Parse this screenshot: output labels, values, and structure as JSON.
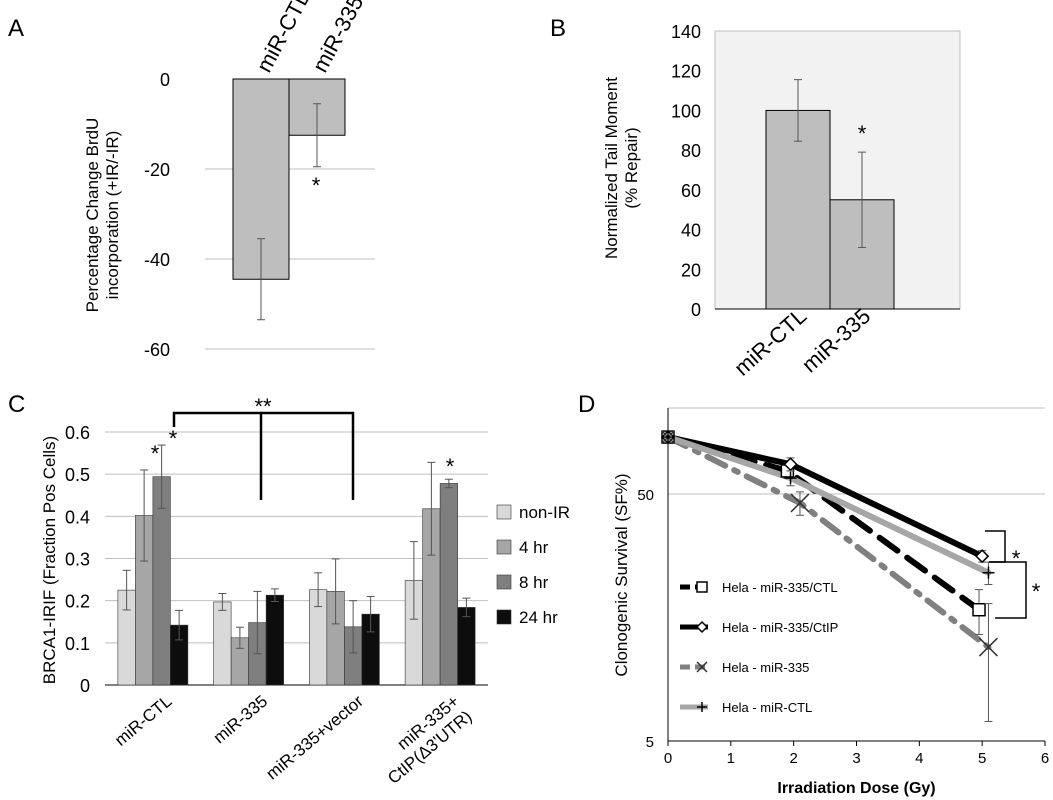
{
  "panels": {
    "A": "A",
    "B": "B",
    "C": "C",
    "D": "D"
  },
  "chart_data": [
    {
      "panel": "A",
      "type": "bar",
      "categories": [
        "miR-CTL",
        "miR-335"
      ],
      "values": [
        -44.5,
        -12.5
      ],
      "errors": [
        9,
        7
      ],
      "ylabel": "Percentage Change BrdU incorporation (+IR/-IR)",
      "ylabel_lines": [
        "Percentage Change BrdU",
        "incorporation (+IR/-IR)"
      ],
      "ylim": [
        -60,
        0
      ],
      "yticks": [
        "0",
        "-20",
        "-40",
        "-60"
      ],
      "significance": [
        "",
        "*"
      ],
      "bar_color": "#BEBEBE"
    },
    {
      "panel": "B",
      "type": "bar",
      "categories": [
        "miR-CTL",
        "miR-335"
      ],
      "values": [
        100,
        55
      ],
      "errors": [
        15.5,
        24
      ],
      "ylabel": "Normalized Tail Moment (% Repair)",
      "ylabel_lines": [
        "Normalized Tail Moment",
        "(% Repair)"
      ],
      "ylim": [
        0,
        140
      ],
      "yticks": [
        "0",
        "20",
        "40",
        "60",
        "80",
        "100",
        "120",
        "140"
      ],
      "significance": [
        "",
        "*"
      ],
      "bar_color": "#BEBEBE",
      "plot_background": "#F2F2F2"
    },
    {
      "panel": "C",
      "type": "bar",
      "categories": [
        "miR-CTL",
        "miR-335",
        "miR-335+vector",
        "miR-335+\nCtIP(Δ3'UTR)"
      ],
      "category_lines": [
        [
          "miR-CTL"
        ],
        [
          "miR-335"
        ],
        [
          "miR-335+vector"
        ],
        [
          "miR-335+",
          "CtIP(Δ3'UTR)"
        ]
      ],
      "series": [
        {
          "name": "non-IR",
          "values": [
            0.225,
            0.197,
            0.226,
            0.248
          ],
          "errors": [
            0.047,
            0.02,
            0.04,
            0.092
          ],
          "color": "#D9D9D9"
        },
        {
          "name": "4 hr",
          "values": [
            0.402,
            0.112,
            0.222,
            0.418
          ],
          "errors": [
            0.108,
            0.025,
            0.077,
            0.11
          ],
          "color": "#A6A6A6"
        },
        {
          "name": "8 hr",
          "values": [
            0.494,
            0.148,
            0.138,
            0.478
          ],
          "errors": [
            0.075,
            0.074,
            0.062,
            0.01
          ],
          "color": "#7F7F7F"
        },
        {
          "name": "24 hr",
          "values": [
            0.142,
            0.213,
            0.168,
            0.184
          ],
          "errors": [
            0.035,
            0.015,
            0.042,
            0.022
          ],
          "color": "#0D0D0D"
        }
      ],
      "ylabel": "BRCA1-IRIF (Fraction Pos Cells)",
      "ylim": [
        0,
        0.6
      ],
      "yticks": [
        "0",
        "0.1",
        "0.2",
        "0.3",
        "0.4",
        "0.5",
        "0.6"
      ],
      "significance_bracket": "**",
      "single_star": "*",
      "legend_position": "right"
    },
    {
      "panel": "D",
      "type": "line",
      "xlabel": "Irradiation Dose (Gy)",
      "ylabel": "Clonogenic Survival (SF%)",
      "xlim": [
        0,
        6
      ],
      "xticks": [
        "0",
        "1",
        "2",
        "3",
        "4",
        "5",
        "6"
      ],
      "ylim": [
        5,
        100
      ],
      "ytick_labels": [
        {
          "value": 50,
          "label": "50"
        },
        {
          "value": 5,
          "label": "5"
        }
      ],
      "y_scale": "log",
      "significance": [
        "*",
        "*"
      ],
      "series": [
        {
          "name": "Hela - miR-335/CTL",
          "x": [
            0,
            1.9,
            4.95
          ],
          "y": [
            85,
            62,
            17
          ],
          "err": [
            0,
            4,
            3.5
          ],
          "color": "#000000",
          "dash": "dash",
          "marker": "square"
        },
        {
          "name": "Hela - miR-335/CtIP",
          "x": [
            0,
            1.95,
            5
          ],
          "y": [
            85,
            66,
            28
          ],
          "err": [
            0,
            4,
            1.5
          ],
          "color": "#000000",
          "dash": "solid",
          "marker": "diamond"
        },
        {
          "name": "Hela - miR-335",
          "x": [
            0,
            2.1,
            5.1
          ],
          "y": [
            85,
            46,
            12
          ],
          "err": [
            0,
            5,
            6
          ],
          "color": "#808080",
          "dash": "dashdot",
          "marker": "x"
        },
        {
          "name": "Hela - miR-CTL",
          "x": [
            0,
            1.95,
            5.1
          ],
          "y": [
            85,
            58,
            24
          ],
          "err": [
            0,
            4,
            2.5
          ],
          "color": "#A6A6A6",
          "dash": "solid",
          "marker": "plus"
        }
      ],
      "legend_position": "bottom-left"
    }
  ]
}
